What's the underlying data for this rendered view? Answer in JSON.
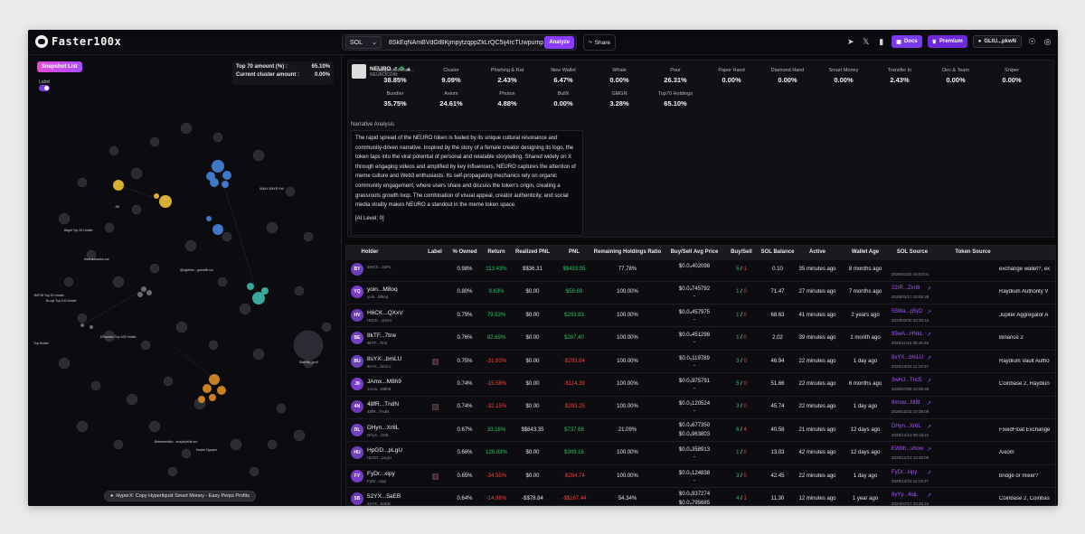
{
  "app": {
    "name": "Faster100x"
  },
  "header": {
    "chain": "SOL",
    "address": "8SkEqNAmBVdGtBKjmpytzqppZkLrQC5ij4rcTUwpump",
    "analyze_label": "Analyze",
    "share_label": "Share",
    "docs_label": "Docs",
    "premium_label": "Premium",
    "wallet_label": "GLtU...pkwN",
    "accent": "#8b3dff"
  },
  "left": {
    "snapshot_label": "Snapshot List",
    "label_toggle": "Label",
    "top70_label": "Top 70 amount (%) :",
    "top70_value": "65.10%",
    "cluster_label": "Current cluster amount :",
    "cluster_value": "0.00%",
    "graph_labels": [
      "JDI",
      "Bitget Top 20 Holder",
      "fewtradesadm.sol",
      "@uglebito - gamefifi.sol",
      "SMAX $NXR Fwl",
      "JMFV8 Top 20 Holder",
      "BLoqt Top 100 Holder",
      "DPasxtdx Top 100 Holder",
      "Top Holder",
      "Stability_poo!",
      "Bebeebeltido - shayilu/elite.sol",
      "Kadan Nguyen"
    ],
    "hyperx_label": "HyperX: Copy Hyperliquid Smart Money - Easy Perps Profits"
  },
  "token": {
    "name": "NEURO",
    "symbol": "NEUROCOIN",
    "stats": [
      {
        "label": "Suspected Inst...",
        "value": "38.85%"
      },
      {
        "label": "Cluster",
        "value": "9.09%"
      },
      {
        "label": "Phishing & Rat",
        "value": "2.43%"
      },
      {
        "label": "New Wallet",
        "value": "6.47%"
      },
      {
        "label": "Whale",
        "value": "0.00%"
      },
      {
        "label": "Poor",
        "value": "26.31%"
      },
      {
        "label": "Paper Hand",
        "value": "0.00%"
      },
      {
        "label": "Diamond Hand",
        "value": "0.00%"
      },
      {
        "label": "Smart Money",
        "value": "0.00%"
      },
      {
        "label": "Transfer In",
        "value": "2.43%"
      },
      {
        "label": "Dev & Team",
        "value": "0.00%"
      },
      {
        "label": "Sniper",
        "value": "0.00%"
      },
      {
        "label": "Bundler",
        "value": "35.75%"
      },
      {
        "label": "Axiom",
        "value": "24.61%"
      },
      {
        "label": "Photon",
        "value": "4.88%"
      },
      {
        "label": "BullX",
        "value": "0.00%"
      },
      {
        "label": "GMGN",
        "value": "3.28%"
      },
      {
        "label": "Top70 Holdings",
        "value": "65.10%"
      }
    ],
    "narrative_title": "Narrative Analysis",
    "narrative": "The rapid spread of the NEURO token is fueled by its unique cultural resonance and community-driven narrative. Inspired by the story of a female creator designing its logo, the token taps into the viral potential of personal and relatable storytelling. Shared widely on X through engaging videos and amplified by key influencers, NEURO captures the attention of meme culture and Web3 enthusiasts. Its self-propagating mechanics rely on organic community engagement, where users share and discuss the token's origin, creating a grassroots growth loop. The combination of visual appeal, creator authenticity, and social media virality makes NEURO a standout in the meme token space.",
    "ai_level": "[AI Level: 0]"
  },
  "table": {
    "headers": [
      "Holder",
      "Label",
      "% Owned",
      "Return",
      "Realized PNL",
      "PNL",
      "Remaining Holdings Ratio",
      "Buy/Sell Avg Price",
      "Buy/Sell",
      "SOL Balance",
      "Active",
      "Wallet Age",
      "SOL Source",
      "Token Source"
    ],
    "rows": [
      {
        "av": "BY",
        "avc": "#6d3fb8",
        "name": "",
        "sub": "6WCh...3xPx",
        "label": false,
        "owned": "0.98%",
        "ret": "113.43%",
        "retc": "green",
        "rpnl": "$$36.31",
        "pnl": "$$493.95",
        "pnlc": "green",
        "ratio": "77.78%",
        "bp": "$0.0₄402098",
        "sp": "",
        "buy": "5",
        "sell": "1",
        "bal": "0.10",
        "active": "35 minutes ago",
        "age": "8 months ago",
        "src": "",
        "srcd": "2025/01/22 15:53:01",
        "tsrc": "exchange wallet?, ex"
      },
      {
        "av": "YQ",
        "avc": "#7a3cc9",
        "name": "yoin...M8oq",
        "sub": "yoin...M8oq",
        "label": false,
        "owned": "0.80%",
        "ret": "9.63%",
        "retc": "green",
        "rpnl": "$0.00",
        "pnl": "$58.69",
        "pnlc": "green",
        "ratio": "100.00%",
        "bp": "$0.0₄745792",
        "sp": "-",
        "buy": "1",
        "sell": "0",
        "bal": "71.47",
        "active": "27 minutes ago",
        "age": "7 months ago",
        "src": "22rR...Zxn8",
        "srcd": "2025/02/17 23:05:39",
        "tsrc": "Raydium Authority V"
      },
      {
        "av": "HV",
        "avc": "#6b3ab4",
        "name": "H6CK...QXxV",
        "sub": "H6CK...QXxV",
        "label": false,
        "owned": "0.79%",
        "ret": "79.53%",
        "retc": "green",
        "rpnl": "$0.00",
        "pnl": "$293.83",
        "pnlc": "green",
        "ratio": "100.00%",
        "bp": "$0.0₄457975",
        "sp": "-",
        "buy": "1",
        "sell": "0",
        "bal": "68.63",
        "active": "41 minutes ago",
        "age": "2 years ago",
        "src": "55Wa...p5yD",
        "srcd": "2023/03/30 22:30:44",
        "tsrc": "Jupiter Aggregator A"
      },
      {
        "av": "BE",
        "avc": "#7440c2",
        "name": "8kTF...7tne",
        "sub": "8kTF...7tne",
        "label": false,
        "owned": "0.76%",
        "ret": "82.69%",
        "retc": "green",
        "rpnl": "$0.00",
        "pnl": "$287.40",
        "pnlc": "green",
        "ratio": "100.00%",
        "bp": "$0.0₄451298",
        "sp": "-",
        "buy": "1",
        "sell": "0",
        "bal": "2.02",
        "active": "39 minutes ago",
        "age": "1 month ago",
        "src": "95wA...HNkL",
        "srcd": "2025/11/16 06:46:46",
        "tsrc": "Binance 2"
      },
      {
        "av": "BU",
        "avc": "#6d3fb8",
        "name": "8sYX...bmLU",
        "sub": "8sYX...bmLU",
        "label": true,
        "owned": "0.75%",
        "ret": "-31.83%",
        "retc": "red",
        "rpnl": "$0.00",
        "pnl": "-$293.84",
        "pnlc": "red",
        "ratio": "100.00%",
        "bp": "$0.0₃119789",
        "sp": "-",
        "buy": "3",
        "sell": "0",
        "bal": "46.94",
        "active": "22 minutes ago",
        "age": "1 day ago",
        "src": "8sYX...bmLU",
        "srcd": "2025/12/23 11:19:37",
        "tsrc": "Raydium Vault Autho"
      },
      {
        "av": "J9",
        "avc": "#7a3cc9",
        "name": "JAmx...M8h9",
        "sub": "JAmx...M8h9",
        "label": false,
        "owned": "0.74%",
        "ret": "-15.58%",
        "retc": "red",
        "rpnl": "$0.00",
        "pnl": "-$114.39",
        "pnlc": "red",
        "ratio": "100.00%",
        "bp": "$0.0₄975791",
        "sp": "-",
        "buy": "5",
        "sell": "0",
        "bal": "51.66",
        "active": "22 minutes ago",
        "age": "6 months ago",
        "src": "3wHJ...Tnc5",
        "srcd": "2025/07/09 10:59:49",
        "tsrc": "Coinbase 2, Raydiun"
      },
      {
        "av": "4N",
        "avc": "#6b3ab4",
        "name": "48fR...TndN",
        "sub": "48fR...TndN",
        "label": true,
        "owned": "0.74%",
        "ret": "-32.15%",
        "retc": "red",
        "rpnl": "$0.00",
        "pnl": "-$293.25",
        "pnlc": "red",
        "ratio": "100.00%",
        "bp": "$0.0₃120524",
        "sp": "-",
        "buy": "3",
        "sell": "0",
        "bal": "45.74",
        "active": "22 minutes ago",
        "age": "1 day ago",
        "src": "8mow...Nt8t",
        "srcd": "2025/12/23 10:38:09",
        "tsrc": ""
      },
      {
        "av": "DL",
        "avc": "#7440c2",
        "name": "DHyn...Xr8L",
        "sub": "DHyn...Xr8L",
        "label": false,
        "owned": "0.67%",
        "ret": "33.16%",
        "retc": "green",
        "rpnl": "$$643.35",
        "pnl": "$737.68",
        "pnlc": "green",
        "ratio": "21.09%",
        "bp": "$0.0₄677350",
        "sp": "$0.0₄963803",
        "buy": "6",
        "sell": "4",
        "bal": "40.58",
        "active": "21 minutes ago",
        "age": "12 days ago",
        "src": "DHyn...Xr8L",
        "srcd": "2025/12/12 08:18:21",
        "tsrc": "FixedFloat Exchange"
      },
      {
        "av": "HU",
        "avc": "#6d3fb8",
        "name": "HpGD...pLgU",
        "sub": "HpGD...pLgU",
        "label": false,
        "owned": "0.66%",
        "ret": "126.93%",
        "retc": "green",
        "rpnl": "$0.00",
        "pnl": "$309.16",
        "pnlc": "green",
        "ratio": "100.00%",
        "bp": "$0.0₄358913",
        "sp": "-",
        "buy": "1",
        "sell": "0",
        "bal": "13.03",
        "active": "42 minutes ago",
        "age": "12 days ago",
        "src": "EWbh...vhow",
        "srcd": "2025/12/12 14:45:00",
        "tsrc": "Axiom"
      },
      {
        "av": "FY",
        "avc": "#7a3cc9",
        "name": "FyDr...xipy",
        "sub": "FyDr...xipy",
        "label": true,
        "owned": "0.65%",
        "ret": "-34.55%",
        "retc": "red",
        "rpnl": "$0.00",
        "pnl": "-$284.74",
        "pnlc": "red",
        "ratio": "100.00%",
        "bp": "$0.0₃124838",
        "sp": "-",
        "buy": "3",
        "sell": "0",
        "bal": "42.45",
        "active": "22 minutes ago",
        "age": "1 day ago",
        "src": "FyDr...xipy",
        "srcd": "2025/12/23 11:19:37",
        "tsrc": "bridge or mixer?"
      },
      {
        "av": "5B",
        "avc": "#6b3ab4",
        "name": "52YX...5aEB",
        "sub": "52YX...5aEB",
        "label": false,
        "owned": "0.64%",
        "ret": "-14.86%",
        "retc": "red",
        "rpnl": "-$$78.84",
        "pnl": "-$$167.44",
        "pnlc": "red",
        "ratio": "54.34%",
        "bp": "$0.0₄937274",
        "sp": "$0.0₄795685",
        "buy": "4",
        "sell": "1",
        "bal": "11.30",
        "active": "12 minutes ago",
        "age": "1 year ago",
        "src": "8yYy...4iqL",
        "srcd": "2024/07/17 23:45:24",
        "tsrc": "Coinbase 2, Coinbas"
      }
    ]
  }
}
